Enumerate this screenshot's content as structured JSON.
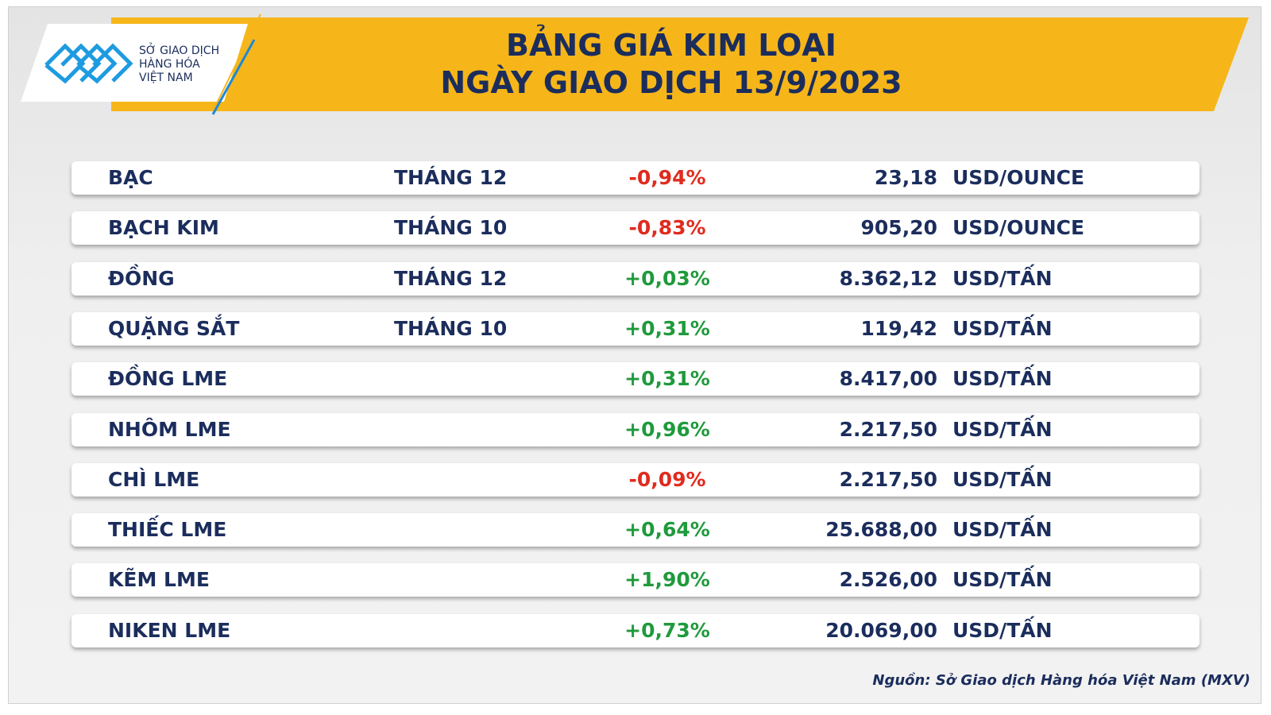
{
  "header": {
    "logo": [
      "SỞ GIAO DỊCH",
      "HÀNG HÓA",
      "VIỆT NAM"
    ],
    "title": [
      "BẢNG GIÁ KIM LOẠI",
      "NGÀY GIAO DỊCH 13/9/2023"
    ]
  },
  "table": {
    "rows": [
      {
        "name": "BẠC",
        "month": "THÁNG 12",
        "change": "-0,94%",
        "price": "23,18",
        "unit": "USD/OUNCE"
      },
      {
        "name": "BẠCH KIM",
        "month": "THÁNG 10",
        "change": "-0,83%",
        "price": "905,20",
        "unit": "USD/OUNCE"
      },
      {
        "name": "ĐỒNG",
        "month": "THÁNG 12",
        "change": "+0,03%",
        "price": "8.362,12",
        "unit": "USD/TẤN"
      },
      {
        "name": "QUẶNG SẮT",
        "month": "THÁNG 10",
        "change": "+0,31%",
        "price": "119,42",
        "unit": "USD/TẤN"
      },
      {
        "name": "ĐỒNG LME",
        "change": "+0,31%",
        "price": "8.417,00",
        "unit": "USD/TẤN"
      },
      {
        "name": "NHÔM LME",
        "change": "+0,96%",
        "price": "2.217,50",
        "unit": "USD/TẤN"
      },
      {
        "name": "CHÌ LME",
        "change": "-0,09%",
        "price": "2.217,50",
        "unit": "USD/TẤN"
      },
      {
        "name": "THIẾC LME",
        "change": "+0,64%",
        "price": "25.688,00",
        "unit": "USD/TẤN"
      },
      {
        "name": "KẼM LME",
        "change": "+1,90%",
        "price": "2.526,00",
        "unit": "USD/TẤN"
      },
      {
        "name": "NIKEN LME",
        "change": "+0,73%",
        "price": "20.069,00",
        "unit": "USD/TẤN"
      }
    ]
  },
  "source": "Nguồn: Sở Giao dịch Hàng hóa Việt Nam (MXV)"
}
